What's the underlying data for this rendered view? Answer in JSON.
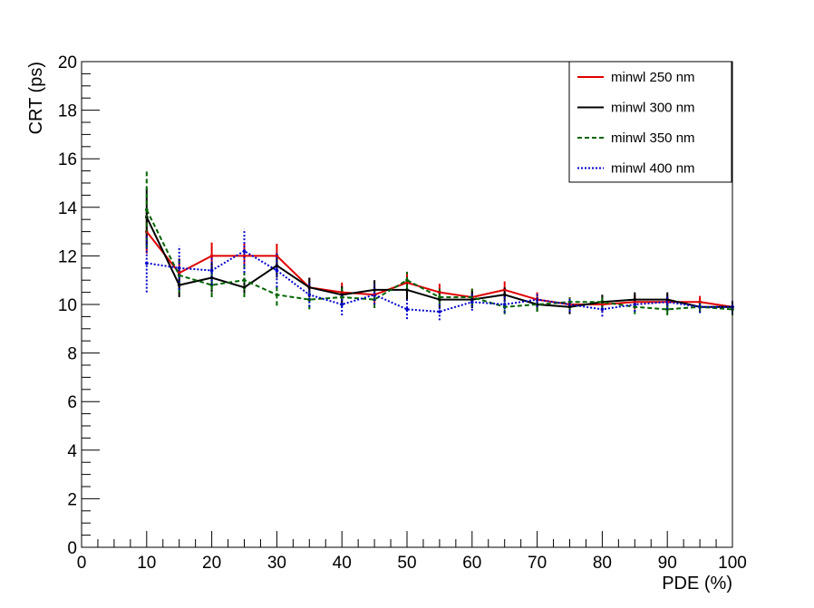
{
  "chart_data": {
    "type": "line",
    "xlabel": "PDE (%)",
    "ylabel": "CRT (ps)",
    "xlim": [
      0,
      100
    ],
    "ylim": [
      0,
      20
    ],
    "x_ticks": [
      0,
      10,
      20,
      30,
      40,
      50,
      60,
      70,
      80,
      90,
      100
    ],
    "y_ticks": [
      0,
      2,
      4,
      6,
      8,
      10,
      12,
      14,
      16,
      18,
      20
    ],
    "grid": false,
    "legend_position": "top-right",
    "x": [
      10,
      15,
      20,
      25,
      30,
      35,
      40,
      45,
      50,
      55,
      60,
      65,
      70,
      75,
      80,
      85,
      90,
      95,
      100
    ],
    "series": [
      {
        "name": "minwl 250 nm",
        "color": "#e00000",
        "style": "solid",
        "values": [
          13.0,
          11.3,
          12.0,
          12.0,
          12.0,
          10.7,
          10.5,
          10.4,
          10.9,
          10.5,
          10.3,
          10.6,
          10.2,
          10.0,
          10.0,
          10.1,
          10.1,
          10.1,
          9.9
        ],
        "errors": [
          0.9,
          0.6,
          0.55,
          0.55,
          0.5,
          0.4,
          0.4,
          0.4,
          0.4,
          0.35,
          0.35,
          0.35,
          0.3,
          0.3,
          0.3,
          0.3,
          0.3,
          0.25,
          0.25
        ]
      },
      {
        "name": "minwl 300 nm",
        "color": "#000000",
        "style": "solid",
        "values": [
          13.6,
          10.8,
          11.1,
          10.7,
          11.6,
          10.7,
          10.4,
          10.6,
          10.6,
          10.2,
          10.2,
          10.4,
          10.0,
          9.9,
          10.1,
          10.2,
          10.2,
          9.9,
          9.9
        ],
        "errors": [
          1.2,
          0.5,
          0.6,
          0.4,
          0.5,
          0.4,
          0.35,
          0.4,
          0.4,
          0.35,
          0.35,
          0.3,
          0.3,
          0.3,
          0.3,
          0.3,
          0.3,
          0.25,
          0.25
        ]
      },
      {
        "name": "minwl 350 nm",
        "color": "#006400",
        "style": "dashed",
        "values": [
          13.9,
          11.2,
          10.8,
          11.0,
          10.4,
          10.2,
          10.3,
          10.2,
          11.0,
          10.3,
          10.3,
          9.9,
          10.0,
          10.1,
          10.1,
          9.9,
          9.8,
          9.9,
          9.8
        ],
        "errors": [
          1.6,
          0.7,
          0.5,
          0.7,
          0.45,
          0.4,
          0.4,
          0.35,
          0.35,
          0.35,
          0.35,
          0.3,
          0.3,
          0.3,
          0.3,
          0.3,
          0.25,
          0.25,
          0.25
        ]
      },
      {
        "name": "minwl 400 nm",
        "color": "#0000cc",
        "style": "dotted",
        "values": [
          11.7,
          11.5,
          11.4,
          12.2,
          11.4,
          10.4,
          10.0,
          10.4,
          9.8,
          9.7,
          10.1,
          10.0,
          10.2,
          10.0,
          9.8,
          10.0,
          10.1,
          9.9,
          9.9
        ],
        "errors": [
          1.2,
          0.9,
          0.6,
          0.9,
          0.7,
          0.5,
          0.45,
          0.4,
          0.4,
          0.35,
          0.35,
          0.35,
          0.3,
          0.3,
          0.3,
          0.3,
          0.3,
          0.25,
          0.25
        ]
      }
    ]
  }
}
